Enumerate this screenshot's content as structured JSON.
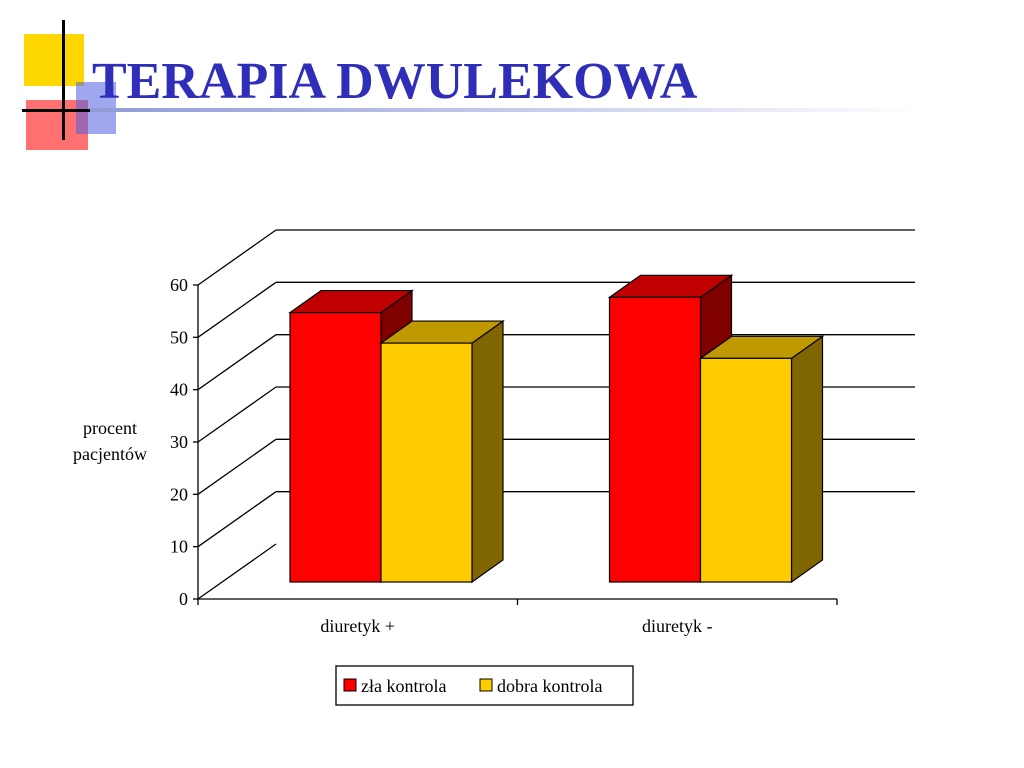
{
  "slide": {
    "title": "TERAPIA DWULEKOWA"
  },
  "colors": {
    "title": "#2E2EB8",
    "deco_yellow": "#FFD700",
    "deco_red": "#FF4040",
    "deco_blue": "#5060E0"
  },
  "chart_data": {
    "type": "bar",
    "three_d": true,
    "categories": [
      "diuretyk +",
      "diuretyk -"
    ],
    "series": [
      {
        "name": "zła kontrola",
        "values": [
          53,
          56
        ],
        "color": "#FF0000",
        "side_color": "#800000",
        "top_color": "#C00000"
      },
      {
        "name": "dobra kontrola",
        "values": [
          47,
          44
        ],
        "color": "#FFCC00",
        "side_color": "#806600",
        "top_color": "#C09900"
      }
    ],
    "ylabel_lines": [
      "procent",
      "pacjentów"
    ],
    "ylim": [
      0,
      60
    ],
    "yticks": [
      0,
      10,
      20,
      30,
      40,
      50,
      60
    ],
    "grid": true,
    "legend_position": "bottom"
  }
}
